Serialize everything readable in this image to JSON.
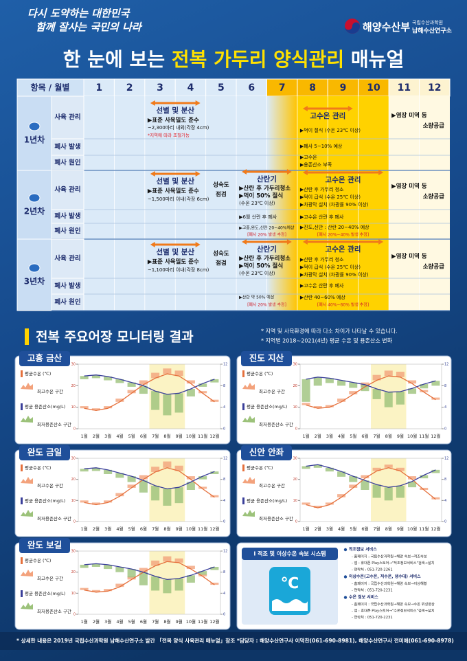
{
  "header": {
    "slogan": [
      "다시 도약하는 대한민국",
      "함께 잘사는 국민의 나라"
    ],
    "ministry": "해양수산부",
    "institute": [
      "국립수산과학원",
      "남해수산연구소"
    ],
    "title": [
      "한 눈에 보는",
      "전복 가두리 양식관리",
      "매뉴얼"
    ]
  },
  "table": {
    "header": [
      "항목 / 월별",
      "1",
      "2",
      "3",
      "4",
      "5",
      "6",
      "7",
      "8",
      "9",
      "10",
      "11",
      "12"
    ],
    "years": [
      {
        "label": "1년차",
        "rows": [
          {
            "label": "사육 관리",
            "cells": [
              [
                "선별 및 분산",
                "▶표준 사육밀도 준수",
                "~2,300마리 내외(각장 4cm)",
                "*지역에 따라 조절가능"
              ],
              [
                "고수온 관리",
                "▶먹이 절식 (수온 23℃ 이상)"
              ],
              [
                "▶염장 미역 등",
                "소량공급"
              ]
            ]
          },
          {
            "label": "폐사 발생",
            "cells": [
              [
                "▶폐사 5~10% 예상"
              ]
            ]
          },
          {
            "label": "폐사 원인",
            "cells": [
              [
                "▶고수온",
                "▶용존산소 부족"
              ]
            ]
          }
        ]
      },
      {
        "label": "2년차",
        "rows": [
          {
            "label": "사육 관리",
            "cells": [
              [
                "선별 및 분산",
                "▶표준 사육밀도 준수",
                "~1,500마리 이내(각장 6cm)"
              ],
              [
                "성숙도",
                "점검"
              ],
              [
                "산란기",
                "▶산란 후 가두리청소",
                "▶먹이 50% 절식",
                "(수온 23℃ 이상)"
              ],
              [
                "고수온 관리",
                "▶산란 후 가두리 청소",
                "▶먹이 급식 (수온 25℃ 이상)",
                "▶차광막 설치 (차광률 90% 이상)"
              ],
              [
                "▶염장 미역 등",
                "소량공급"
              ]
            ]
          },
          {
            "label": "폐사 발생",
            "cells": [
              [
                "▶6월 산란 후 폐사"
              ],
              [
                "▶고수온 산란 후 폐사"
              ]
            ]
          },
          {
            "label": "폐사 원인",
            "cells": [
              [
                "▶고흥,완도,신안 20~40%예상",
                "[폐사 20% 발생 추정]"
              ],
              [
                "▶진도,신안 : 산란 20~40% 예상",
                "[폐사 20%~40% 발생 추정]"
              ]
            ]
          }
        ]
      },
      {
        "label": "3년차",
        "rows": [
          {
            "label": "사육 관리",
            "cells": [
              [
                "선별 및 분산",
                "▶표준 사육밀도 준수",
                "~1,100마리 이내(각장 8cm)"
              ],
              [
                "성숙도",
                "점검"
              ],
              [
                "산란기",
                "▶산란 후 가두리청소",
                "▶먹이 50% 절식",
                "(수온 23℃ 이상)"
              ],
              [
                "고수온 관리",
                "▶산란 후 가두리 청소",
                "▶먹이 급식 (수온 25℃ 이상)",
                "▶차광막 설치 (차광률 90% 이상)"
              ],
              [
                "▶염장 미역 등",
                "소량공급"
              ]
            ]
          },
          {
            "label": "폐사 발생",
            "cells": [
              [
                "▶고수온 산란 후 폐사"
              ]
            ]
          },
          {
            "label": "폐사 원인",
            "cells": [
              [
                "▶산란 약 50% 예상",
                "[폐사 20% 발생 추정]"
              ],
              [
                "▶산란 40~60% 예상",
                "[폐사 40%~60% 발생 추정]"
              ]
            ]
          }
        ]
      }
    ]
  },
  "monitoring": {
    "title": "전복 주요어장 모니터링 결과",
    "notes": [
      "* 지역 및 사육환경에 따라 다소 차이가 나타날 수 있습니다.",
      "* 지역별 2018~2021(4년) 평균 수온 및 용존산소 변화"
    ]
  },
  "chart_data": [
    {
      "type": "line",
      "title": "고흥 금산",
      "categories": [
        "1월",
        "2월",
        "3월",
        "4월",
        "5월",
        "6월",
        "7월",
        "8월",
        "9월",
        "10월",
        "11월",
        "12월"
      ],
      "ylim": [
        0,
        30
      ],
      "yticks": [
        0,
        10,
        20,
        30
      ],
      "y2lim": [
        0,
        12
      ],
      "y2ticks": [
        0,
        4,
        8,
        12
      ],
      "series": [
        {
          "name": "평균수온 (℃)",
          "color": "#e5703c",
          "values": [
            9.5,
            8.5,
            9.5,
            12.5,
            16.5,
            20.5,
            23.5,
            25.5,
            24.5,
            21,
            16.5,
            12.5
          ]
        },
        {
          "name": "최고수온 구간",
          "color": "#f3a27c",
          "values": [
            10.5,
            9.5,
            10.5,
            14,
            18,
            22.5,
            26,
            28,
            27,
            22.5,
            17.5,
            13.5
          ]
        },
        {
          "name": "평균 용존산소(mg/L)",
          "color": "#3a3f9a",
          "axis": "y2",
          "values": [
            9.8,
            10,
            9.7,
            9.2,
            8.6,
            8,
            7,
            6.4,
            6.6,
            7.4,
            8.4,
            9.2
          ]
        },
        {
          "name": "최저용존산소 구간",
          "color": "#9cc27a",
          "axis": "y2",
          "values": [
            9.2,
            9.4,
            9,
            8.5,
            7.8,
            6.5,
            3.5,
            2.5,
            3,
            6,
            7.8,
            8.6
          ]
        }
      ]
    },
    {
      "type": "line",
      "title": "진도 지산",
      "categories": [
        "1월",
        "2월",
        "3월",
        "4월",
        "5월",
        "6월",
        "7월",
        "8월",
        "9월",
        "10월",
        "11월",
        "12월"
      ],
      "ylim": [
        0,
        30
      ],
      "yticks": [
        0,
        10,
        20,
        30
      ],
      "y2lim": [
        0,
        12
      ],
      "y2ticks": [
        0,
        4,
        8,
        12
      ],
      "series": [
        {
          "name": "평균수온 (℃)",
          "color": "#e5703c",
          "values": [
            11,
            9.5,
            10,
            12.5,
            16,
            19.5,
            22.5,
            24.5,
            24,
            21,
            17,
            13.5
          ]
        },
        {
          "name": "최고수온 구간",
          "color": "#f3a27c",
          "values": [
            12,
            10.5,
            11,
            14,
            17.5,
            21.5,
            25,
            27,
            26.5,
            22.5,
            18,
            14.5
          ]
        },
        {
          "name": "평균 용존산소(mg/L)",
          "color": "#3a3f9a",
          "axis": "y2",
          "values": [
            9.2,
            9.6,
            9.4,
            9,
            8.6,
            8.2,
            7.4,
            6.8,
            6.9,
            7.5,
            8.3,
            8.9
          ]
        },
        {
          "name": "최저용존산소 구간",
          "color": "#9cc27a",
          "axis": "y2",
          "values": [
            5,
            8,
            8.5,
            8,
            7.6,
            7,
            5.5,
            4,
            4.5,
            6.5,
            7.5,
            8
          ]
        }
      ]
    },
    {
      "type": "line",
      "title": "완도 금일",
      "categories": [
        "1월",
        "2월",
        "3월",
        "4월",
        "5월",
        "6월",
        "7월",
        "8월",
        "9월",
        "10월",
        "11월",
        "12월"
      ],
      "ylim": [
        0,
        30
      ],
      "yticks": [
        0,
        10,
        20,
        30
      ],
      "y2lim": [
        0,
        12
      ],
      "y2ticks": [
        0,
        4,
        8,
        12
      ],
      "series": [
        {
          "name": "평균수온 (℃)",
          "color": "#e5703c",
          "values": [
            9,
            8,
            9,
            12,
            16,
            20,
            23.5,
            25.5,
            24,
            20,
            15.5,
            11.5
          ]
        },
        {
          "name": "최고수온 구간",
          "color": "#f3a27c",
          "values": [
            10,
            9,
            10,
            13.5,
            17.5,
            22,
            26,
            28.5,
            26.5,
            21.5,
            16.5,
            12.5
          ]
        },
        {
          "name": "평균 용존산소(mg/L)",
          "color": "#3a3f9a",
          "axis": "y2",
          "values": [
            10,
            10.2,
            9.8,
            9.2,
            8.6,
            7.8,
            6.8,
            6.2,
            6.5,
            7.5,
            8.6,
            9.5
          ]
        },
        {
          "name": "최저용존산소 구간",
          "color": "#9cc27a",
          "axis": "y2",
          "values": [
            9.5,
            9.6,
            9,
            8.3,
            7.5,
            5.5,
            4,
            3,
            3.5,
            6,
            8,
            9
          ]
        }
      ]
    },
    {
      "type": "line",
      "title": "신안 안좌",
      "categories": [
        "1월",
        "2월",
        "3월",
        "4월",
        "5월",
        "6월",
        "7월",
        "8월",
        "9월",
        "10월",
        "11월",
        "12월"
      ],
      "ylim": [
        0,
        30
      ],
      "yticks": [
        0,
        10,
        20,
        30
      ],
      "y2lim": [
        0,
        12
      ],
      "y2ticks": [
        0,
        4,
        8,
        12
      ],
      "series": [
        {
          "name": "평균수온 (℃)",
          "color": "#e5703c",
          "values": [
            8,
            6.5,
            8,
            11.5,
            16,
            20.5,
            24,
            25.5,
            24,
            20,
            15,
            10.5
          ]
        },
        {
          "name": "최고수온 구간",
          "color": "#f3a27c",
          "values": [
            9,
            7.5,
            9,
            13,
            17.5,
            22,
            25.5,
            27,
            25.5,
            21.5,
            16,
            11.5
          ]
        },
        {
          "name": "평균 용존산소(mg/L)",
          "color": "#3a3f9a",
          "axis": "y2",
          "values": [
            10.5,
            10.8,
            10.2,
            9.5,
            8.6,
            7.8,
            7,
            6.5,
            6.8,
            7.6,
            8.8,
            9.8
          ]
        },
        {
          "name": "최저용존산소 구간",
          "color": "#9cc27a",
          "axis": "y2",
          "values": [
            10,
            10.2,
            9.5,
            8.5,
            7.5,
            6,
            4.5,
            4,
            4.5,
            6.5,
            8.2,
            9.2
          ]
        }
      ]
    },
    {
      "type": "line",
      "title": "완도 보길",
      "categories": [
        "1월",
        "2월",
        "3월",
        "4월",
        "5월",
        "6월",
        "7월",
        "8월",
        "9월",
        "10월",
        "11월",
        "12월"
      ],
      "ylim": [
        0,
        30
      ],
      "yticks": [
        0,
        10,
        20,
        30
      ],
      "y2lim": [
        0,
        12
      ],
      "y2ticks": [
        0,
        4,
        8,
        12
      ],
      "series": [
        {
          "name": "평균수온 (℃)",
          "color": "#e5703c",
          "values": [
            11.5,
            10.5,
            11,
            13,
            16.5,
            20,
            23,
            25,
            24.5,
            21.5,
            18,
            14
          ]
        },
        {
          "name": "최고수온 구간",
          "color": "#f3a27c",
          "values": [
            12.5,
            11.5,
            12,
            14.5,
            18,
            22,
            25.5,
            27.5,
            26.5,
            23,
            19,
            15
          ]
        },
        {
          "name": "평균 용존산소(mg/L)",
          "color": "#3a3f9a",
          "axis": "y2",
          "values": [
            9.4,
            9.6,
            9.4,
            9,
            8.6,
            8,
            7.2,
            6.6,
            6.8,
            7.4,
            8.2,
            9
          ]
        },
        {
          "name": "최저용존산소 구간",
          "color": "#9cc27a",
          "axis": "y2",
          "values": [
            8.8,
            9,
            8.6,
            8,
            7,
            5.5,
            4.5,
            4,
            4.5,
            6,
            7.5,
            8.4
          ]
        }
      ]
    }
  ],
  "alert_system": {
    "title": "I 적조 및 이상수온 속보 시스템",
    "icon": "℃",
    "services": [
      {
        "title": "적조정보 서비스",
        "lines": [
          "- 홈페이지 : 국립수산과학원→해양 속보→적조속보",
          "- 앱 : 휴대폰 Play스토어→\"적조정보서비스\"검색→설치",
          "- 연락처 : 051-720-2261"
        ]
      },
      {
        "title": "이상수온(고수온, 저수온, 냉수대) 서비스",
        "lines": [
          "- 홈페이지 : 국립수산과학원→해양 속보→이상해황",
          "- 연락처 : 051-720-2231"
        ]
      },
      {
        "title": "수온 정보 서비스",
        "lines": [
          "- 홈페이지 : 국립수산과학원→해양 속보→수온 위성영상",
          "- 앱 : 휴대폰 Play스토어→\"수온정보서비스\"검색→설치",
          "- 연락처 : 051-720-2231"
        ]
      }
    ]
  },
  "footer": "* 상세한 내용은 2019년 국립수산과학원 남해수산연구소 발간 「전복 양식 사육관리 매뉴얼」참조  *담당자 : 해양수산연구사 이덕찬(061-690-8981), 해양수산연구사 전미애(061-690-8978)"
}
